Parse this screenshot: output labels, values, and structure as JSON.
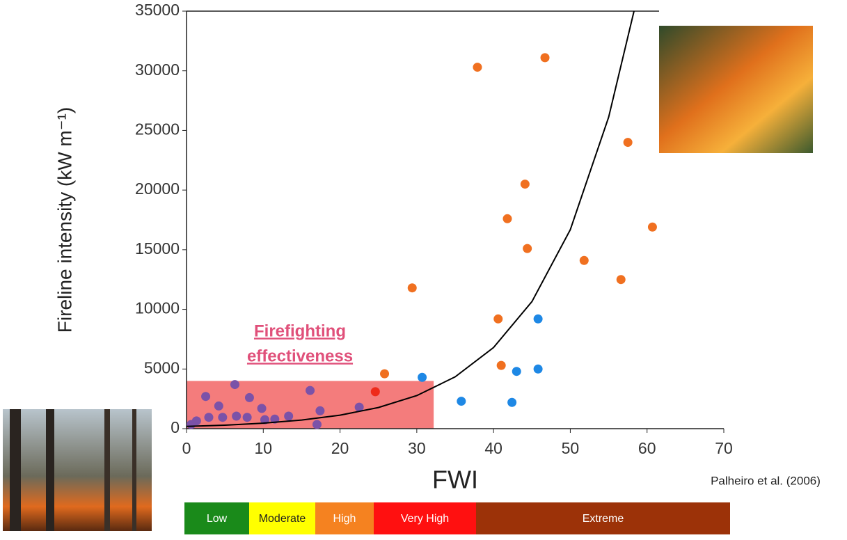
{
  "chart_data": {
    "type": "scatter",
    "xlabel": "FWI",
    "ylabel": "Fireline intensity (kW m⁻¹)",
    "xlim": [
      0,
      70
    ],
    "xticks": [
      0,
      10,
      20,
      30,
      40,
      50,
      60,
      70
    ],
    "ylim": [
      0,
      35000
    ],
    "yticks": [
      0,
      5000,
      10000,
      15000,
      20000,
      25000,
      30000,
      35000
    ],
    "series": [
      {
        "color": "#f07020",
        "x": [
          37.9,
          46.7,
          57.5,
          44.1,
          41.8,
          60.7,
          44.4,
          51.8,
          56.6,
          29.4,
          40.6,
          41.0,
          25.8
        ],
        "values": [
          30300,
          31100,
          24000,
          20500,
          17600,
          16900,
          15100,
          14100,
          12500,
          11800,
          9200,
          5300,
          4600
        ]
      },
      {
        "color": "#ee2a1a",
        "x": [
          24.6
        ],
        "values": [
          3100
        ]
      },
      {
        "color": "#1e88e5",
        "x": [
          30.7,
          35.8,
          43.0,
          45.8,
          45.8,
          42.4
        ],
        "values": [
          4300,
          2300,
          4800,
          5000,
          9200,
          2200
        ]
      },
      {
        "color": "#7b52a8",
        "x": [
          2.5,
          6.3,
          4.2,
          9.8,
          8.2,
          16.1,
          17.4,
          17.0,
          22.5,
          13.3,
          11.5,
          1.3,
          2.9,
          4.7,
          6.5,
          7.9,
          10.2,
          0.6
        ],
        "values": [
          2700,
          3700,
          1900,
          1700,
          2600,
          3200,
          1500,
          350,
          1800,
          1050,
          800,
          650,
          950,
          950,
          1050,
          950,
          750,
          350
        ]
      }
    ],
    "curve": {
      "color": "#000000",
      "x": [
        0,
        5,
        10,
        15,
        20,
        25,
        30,
        35,
        40,
        45,
        50,
        55,
        58.3
      ],
      "values": [
        188,
        294,
        461,
        722,
        1130,
        1771,
        2773,
        4343,
        6800,
        10650,
        16680,
        26120,
        35000
      ]
    },
    "zone": {
      "color": "#f47c7c",
      "xlim": [
        0,
        32.2
      ],
      "ylim": [
        0,
        4000
      ],
      "label": [
        "Firefighting",
        "effectiveness"
      ]
    },
    "source": "Palheiro et al. (2006)",
    "danger_classes": [
      {
        "name": "Low",
        "color": "#1a8a1a"
      },
      {
        "name": "Moderate",
        "color": "#ffff00"
      },
      {
        "name": "High",
        "color": "#f58220"
      },
      {
        "name": "Very High",
        "color": "#ff1010"
      },
      {
        "name": "Extreme",
        "color": "#9c3208"
      }
    ]
  }
}
